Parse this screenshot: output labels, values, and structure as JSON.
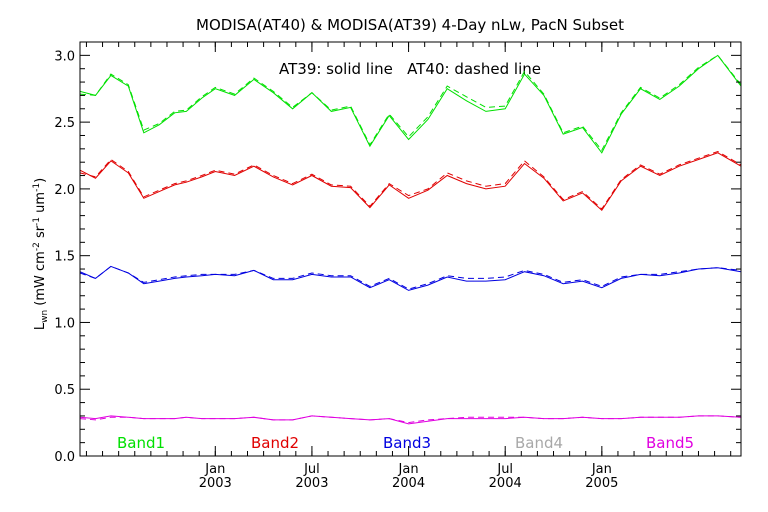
{
  "chart_data": {
    "type": "line",
    "title": "MODISA(AT40) & MODISA(AT39) 4-Day nLw, PacN Subset",
    "annotation": "AT39: solid line   AT40: dashed line",
    "ylabel_main": "L",
    "ylabel_sub": "wn",
    "ylabel_units_pre": " (mW cm",
    "ylabel_sup1": "-2",
    "ylabel_units_mid": " sr",
    "ylabel_sup2": "-1",
    "ylabel_units_mid2": " um",
    "ylabel_sup3": "-1",
    "ylabel_units_post": ")",
    "xlim": [
      2002.3,
      2005.72
    ],
    "ylim": [
      0.0,
      3.1
    ],
    "y_ticks": [
      {
        "value": 0.0,
        "label": "0.0"
      },
      {
        "value": 0.5,
        "label": "0.5"
      },
      {
        "value": 1.0,
        "label": "1.0"
      },
      {
        "value": 1.5,
        "label": "1.5"
      },
      {
        "value": 2.0,
        "label": "2.0"
      },
      {
        "value": 2.5,
        "label": "2.5"
      },
      {
        "value": 3.0,
        "label": "3.0"
      }
    ],
    "x_ticks": [
      {
        "value": 2003.0,
        "label1": "Jan",
        "label2": "2003"
      },
      {
        "value": 2003.5,
        "label1": "Jul",
        "label2": "2003"
      },
      {
        "value": 2004.0,
        "label1": "Jan",
        "label2": "2004"
      },
      {
        "value": 2004.5,
        "label1": "Jul",
        "label2": "2004"
      },
      {
        "value": 2005.0,
        "label1": "Jan",
        "label2": "2005"
      }
    ],
    "x_minor_step": 0.0833333,
    "x": [
      2002.3,
      2002.38,
      2002.46,
      2002.55,
      2002.63,
      2002.71,
      2002.79,
      2002.85,
      2002.93,
      2003.0,
      2003.1,
      2003.2,
      2003.3,
      2003.4,
      2003.5,
      2003.6,
      2003.7,
      2003.8,
      2003.9,
      2004.0,
      2004.1,
      2004.2,
      2004.3,
      2004.4,
      2004.5,
      2004.6,
      2004.7,
      2004.8,
      2004.9,
      2005.0,
      2005.1,
      2005.2,
      2005.3,
      2005.4,
      2005.5,
      2005.6,
      2005.72
    ],
    "series": [
      {
        "name": "Band1",
        "color": "#00e000",
        "solid": [
          2.73,
          2.7,
          2.85,
          2.77,
          2.42,
          2.48,
          2.57,
          2.58,
          2.68,
          2.75,
          2.7,
          2.82,
          2.72,
          2.6,
          2.72,
          2.58,
          2.61,
          2.32,
          2.55,
          2.37,
          2.52,
          2.75,
          2.66,
          2.58,
          2.6,
          2.86,
          2.7,
          2.41,
          2.46,
          2.27,
          2.56,
          2.75,
          2.67,
          2.77,
          2.9,
          3.0,
          2.77
        ],
        "dashed": [
          2.71,
          2.7,
          2.86,
          2.78,
          2.44,
          2.49,
          2.58,
          2.59,
          2.69,
          2.76,
          2.71,
          2.83,
          2.73,
          2.61,
          2.72,
          2.59,
          2.62,
          2.33,
          2.56,
          2.39,
          2.54,
          2.77,
          2.69,
          2.61,
          2.62,
          2.88,
          2.71,
          2.42,
          2.47,
          2.29,
          2.57,
          2.76,
          2.68,
          2.78,
          2.91,
          3.0,
          2.78
        ]
      },
      {
        "name": "Band2",
        "color": "#e00000",
        "solid": [
          2.14,
          2.08,
          2.21,
          2.12,
          1.93,
          1.98,
          2.03,
          2.05,
          2.09,
          2.13,
          2.1,
          2.17,
          2.09,
          2.03,
          2.1,
          2.02,
          2.01,
          1.86,
          2.03,
          1.93,
          1.99,
          2.1,
          2.04,
          2.0,
          2.02,
          2.19,
          2.08,
          1.91,
          1.97,
          1.84,
          2.06,
          2.17,
          2.1,
          2.17,
          2.22,
          2.27,
          2.17
        ],
        "dashed": [
          2.12,
          2.09,
          2.22,
          2.13,
          1.94,
          1.99,
          2.04,
          2.06,
          2.1,
          2.14,
          2.11,
          2.18,
          2.1,
          2.04,
          2.11,
          2.03,
          2.02,
          1.87,
          2.04,
          1.95,
          2.0,
          2.12,
          2.06,
          2.02,
          2.04,
          2.21,
          2.09,
          1.92,
          1.98,
          1.85,
          2.07,
          2.18,
          2.11,
          2.18,
          2.23,
          2.28,
          2.18
        ]
      },
      {
        "name": "Band3",
        "color": "#0000e0",
        "solid": [
          1.38,
          1.33,
          1.42,
          1.37,
          1.29,
          1.31,
          1.33,
          1.34,
          1.35,
          1.36,
          1.35,
          1.39,
          1.32,
          1.32,
          1.36,
          1.34,
          1.34,
          1.26,
          1.32,
          1.24,
          1.28,
          1.34,
          1.31,
          1.31,
          1.32,
          1.38,
          1.35,
          1.29,
          1.31,
          1.26,
          1.33,
          1.36,
          1.35,
          1.37,
          1.4,
          1.41,
          1.38
        ],
        "dashed": [
          1.37,
          1.33,
          1.42,
          1.37,
          1.3,
          1.32,
          1.34,
          1.35,
          1.36,
          1.36,
          1.36,
          1.39,
          1.33,
          1.33,
          1.37,
          1.35,
          1.35,
          1.27,
          1.33,
          1.25,
          1.29,
          1.35,
          1.33,
          1.33,
          1.34,
          1.39,
          1.36,
          1.3,
          1.32,
          1.27,
          1.34,
          1.36,
          1.36,
          1.38,
          1.4,
          1.41,
          1.39
        ]
      },
      {
        "name": "Band4",
        "color": "#a8a8a8",
        "solid": [],
        "dashed": []
      },
      {
        "name": "Band5",
        "color": "#e000e0",
        "solid": [
          0.29,
          0.28,
          0.3,
          0.29,
          0.28,
          0.28,
          0.28,
          0.29,
          0.28,
          0.28,
          0.28,
          0.29,
          0.27,
          0.27,
          0.3,
          0.29,
          0.28,
          0.27,
          0.28,
          0.24,
          0.26,
          0.28,
          0.28,
          0.28,
          0.28,
          0.29,
          0.28,
          0.28,
          0.29,
          0.28,
          0.28,
          0.29,
          0.29,
          0.29,
          0.3,
          0.3,
          0.29
        ],
        "dashed": [
          0.28,
          0.27,
          0.29,
          0.29,
          0.28,
          0.28,
          0.28,
          0.29,
          0.28,
          0.28,
          0.28,
          0.29,
          0.27,
          0.27,
          0.3,
          0.29,
          0.28,
          0.27,
          0.28,
          0.25,
          0.27,
          0.28,
          0.29,
          0.29,
          0.29,
          0.29,
          0.28,
          0.28,
          0.29,
          0.28,
          0.28,
          0.29,
          0.29,
          0.29,
          0.3,
          0.3,
          0.29
        ]
      }
    ]
  }
}
